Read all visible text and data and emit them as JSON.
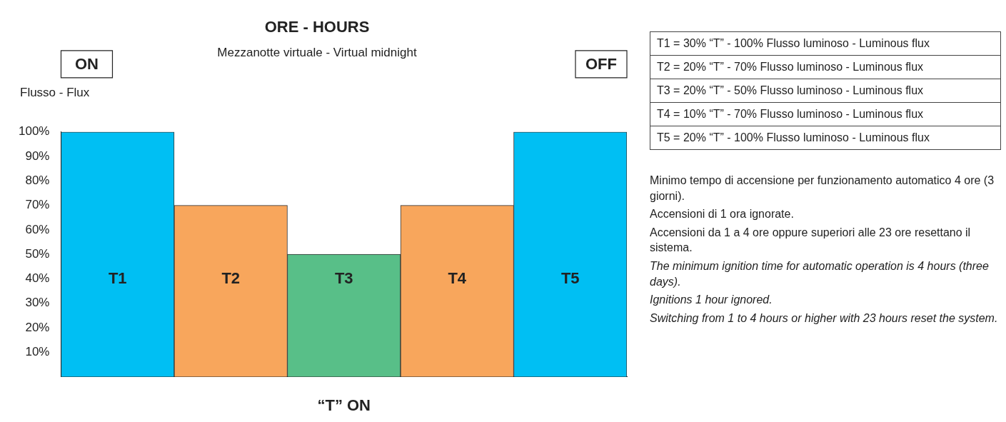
{
  "chart_data": {
    "type": "bar",
    "title": "ORE - HOURS",
    "subtitle": "Mezzanotte virtuale - Virtual midnight",
    "xlabel": "“T” ON",
    "ylabel": "Flusso - Flux",
    "categories": [
      "T1",
      "T2",
      "T3",
      "T4",
      "T5"
    ],
    "values": [
      100,
      70,
      50,
      70,
      100
    ],
    "colors": [
      "#00bff3",
      "#f8a65c",
      "#58bf88",
      "#f8a65c",
      "#00bff3"
    ],
    "ylim": [
      0,
      100
    ],
    "yticks": [
      {
        "value": 10,
        "label": "10%"
      },
      {
        "value": 20,
        "label": "20%"
      },
      {
        "value": 30,
        "label": "30%"
      },
      {
        "value": 40,
        "label": "40%"
      },
      {
        "value": 50,
        "label": "50%"
      },
      {
        "value": 60,
        "label": "60%"
      },
      {
        "value": 70,
        "label": "70%"
      },
      {
        "value": 80,
        "label": "80%"
      },
      {
        "value": 90,
        "label": "90%"
      },
      {
        "value": 100,
        "label": "100%"
      }
    ],
    "grid": false,
    "legend": false,
    "annotations": [
      "ON",
      "OFF",
      "T1 = 30% “T” - 100% Flusso luminoso - Luminous flux",
      "T2 = 20% “T” - 70% Flusso luminoso - Luminous flux",
      "T3 = 20% “T” - 50% Flusso luminoso - Luminous flux",
      "T4 = 10% “T” - 70% Flusso luminoso - Luminous flux",
      "T5 = 20% “T” - 100% Flusso luminoso - Luminous flux",
      "Minimo tempo di accensione per funzionamento automatico 4 ore (3 giorni).",
      "Accensioni di 1 ora ignorate.",
      "Accensioni da 1 a 4 ore oppure superiori alle 23 ore resettano il sistema.",
      "The minimum ignition time for automatic operation is 4 hours (three days).",
      "Ignitions 1 hour ignored.",
      "Switching from 1 to 4 hours or higher with 23 hours reset the system."
    ]
  }
}
